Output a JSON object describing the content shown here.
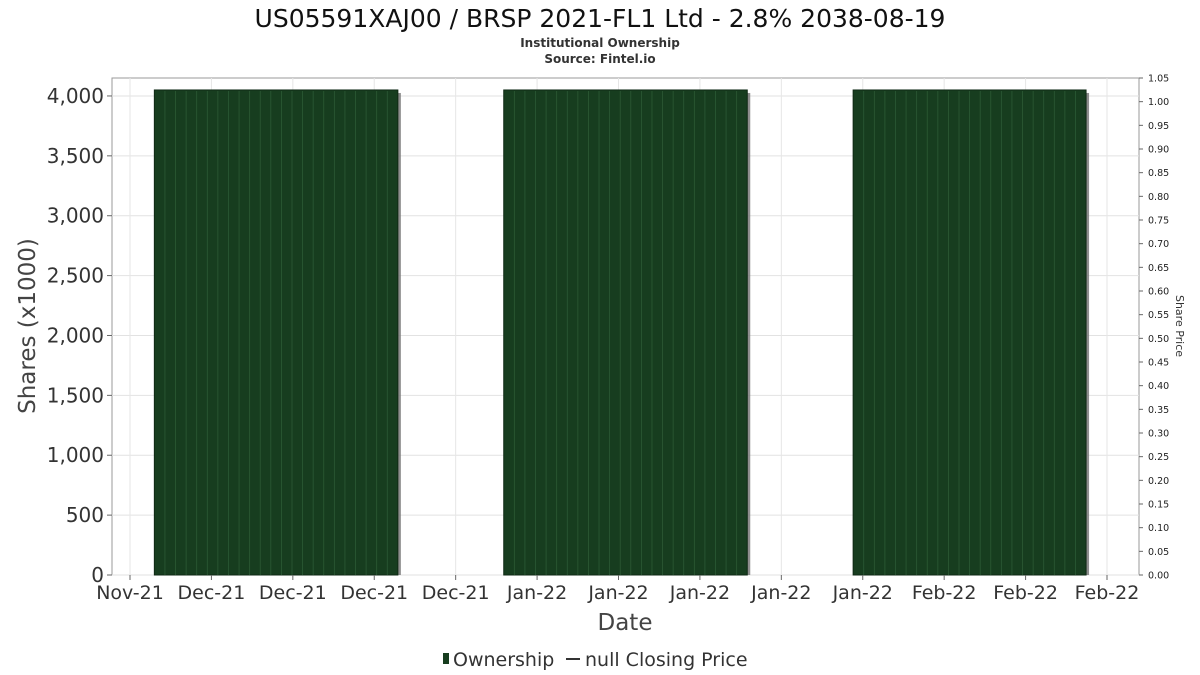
{
  "chart_data": {
    "type": "bar",
    "title": "US05591XAJ00 / BRSP 2021-FL1 Ltd - 2.8% 2038-08-19",
    "subtitle": "Institutional Ownership",
    "source": "Source: Fintel.io",
    "xlabel": "Date",
    "ylabel": "Shares (x1000)",
    "ylabel_right": "Share Price",
    "ylim": [
      0,
      4150
    ],
    "ylim_right": [
      0,
      1.05
    ],
    "grid": true,
    "legend_placement": "bottom",
    "x_range": [
      "2021-11-20",
      "2022-02-25"
    ],
    "x_tick_labels": [
      "Nov-21",
      "Dec-21",
      "Dec-21",
      "Dec-21",
      "Dec-21",
      "Jan-22",
      "Jan-22",
      "Jan-22",
      "Jan-22",
      "Jan-22",
      "Feb-22",
      "Feb-22",
      "Feb-22"
    ],
    "y_tick_values": [
      0,
      500,
      1000,
      1500,
      2000,
      2500,
      3000,
      3500,
      4000
    ],
    "y_tick_labels": [
      "0",
      "500",
      "1,000",
      "1,500",
      "2,000",
      "2,500",
      "3,000",
      "3,500",
      "4,000"
    ],
    "y_right_tick_labels": [
      "0.00",
      "0.05",
      "0.10",
      "0.15",
      "0.20",
      "0.25",
      "0.30",
      "0.35",
      "0.40",
      "0.45",
      "0.50",
      "0.55",
      "0.60",
      "0.65",
      "0.70",
      "0.75",
      "0.80",
      "0.85",
      "0.90",
      "0.95",
      "1.00",
      "1.05"
    ],
    "series": [
      {
        "name": "Ownership",
        "type": "bar",
        "color": "#173d1f",
        "segments": [
          {
            "start": "2021-11-24",
            "end": "2021-12-16",
            "value": 4050
          },
          {
            "start": "2021-12-27",
            "end": "2022-01-18",
            "value": 4050
          },
          {
            "start": "2022-01-29",
            "end": "2022-02-19",
            "value": 4050
          }
        ]
      },
      {
        "name": "null Closing Price",
        "type": "line",
        "color": "#333333",
        "values": []
      }
    ]
  },
  "legend": {
    "items": [
      {
        "label": "Ownership",
        "color": "#173d1f"
      },
      {
        "label": "null Closing Price",
        "color": "#333333"
      }
    ]
  }
}
